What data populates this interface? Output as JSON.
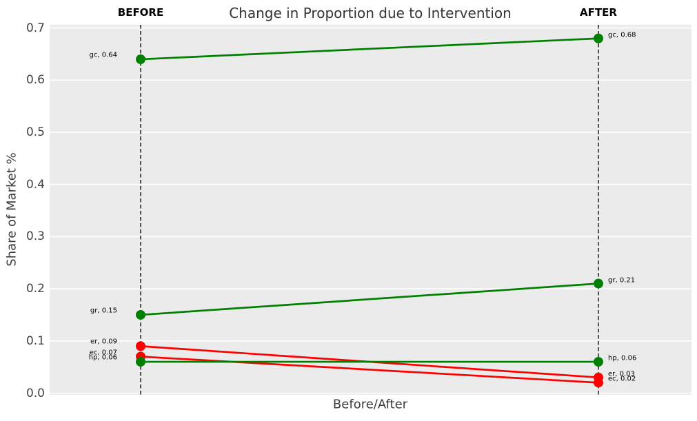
{
  "chart": {
    "title": "Change in Proportion due to Intervention",
    "xlabel": "Before/After",
    "ylabel": "Share of Market %",
    "column_headers": [
      "BEFORE",
      "AFTER"
    ]
  },
  "chart_data": {
    "type": "line",
    "subtype": "slope-chart",
    "title": "Change in Proportion due to Intervention",
    "xlabel": "Before/After",
    "ylabel": "Share of Market %",
    "x_categories": [
      "BEFORE",
      "AFTER"
    ],
    "ylim": [
      0.0,
      0.7
    ],
    "yticks": [
      0.0,
      0.1,
      0.2,
      0.3,
      0.4,
      0.5,
      0.6,
      0.7
    ],
    "ytick_labels": [
      "0.0",
      "0.1",
      "0.2",
      "0.3",
      "0.4",
      "0.5",
      "0.6",
      "0.7"
    ],
    "grid": true,
    "legend": false,
    "series": [
      {
        "name": "gc",
        "color": "#008000",
        "values": [
          0.64,
          0.68
        ],
        "point_labels": [
          "gc, 0.64",
          "gc, 0.68"
        ]
      },
      {
        "name": "gr",
        "color": "#008000",
        "values": [
          0.15,
          0.21
        ],
        "point_labels": [
          "gr, 0.15",
          "gr, 0.21"
        ]
      },
      {
        "name": "er",
        "color": "#ff0000",
        "values": [
          0.09,
          0.03
        ],
        "point_labels": [
          "er, 0.09",
          "er, 0.03"
        ]
      },
      {
        "name": "ec",
        "color": "#ff0000",
        "values": [
          0.07,
          0.02
        ],
        "point_labels": [
          "ec, 0.07",
          "ec, 0.02"
        ]
      },
      {
        "name": "hp",
        "color": "#008000",
        "values": [
          0.06,
          0.06
        ],
        "point_labels": [
          "hp, 0.06",
          "hp, 0.06"
        ]
      }
    ],
    "styles": {
      "plot_background": "#ebebeb",
      "grid_color": "#ffffff",
      "guide_line_color": "#111111",
      "increase_color": "#008000",
      "decrease_color": "#ff0000"
    }
  }
}
